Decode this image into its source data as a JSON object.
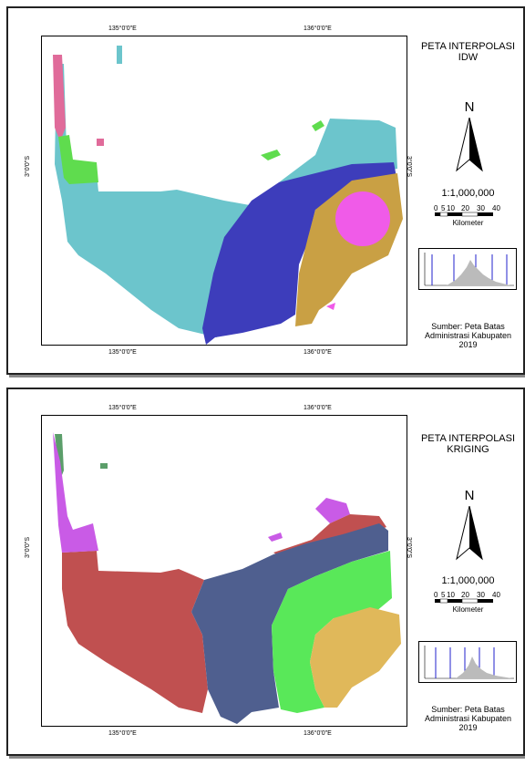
{
  "maps": [
    {
      "title_line1": "PETA INTERPOLASI",
      "title_line2": "IDW",
      "coord_top_left": "135°0'0\"E",
      "coord_top_right": "136°0'0\"E",
      "coord_bottom_left": "135°0'0\"E",
      "coord_bottom_right": "136°0'0\"E",
      "coord_left": "3°0'0\"S",
      "coord_right": "3°0'0\"S",
      "north_label": "N",
      "scale_text": "1:1,000,000",
      "scale_ticks": [
        "0",
        "5",
        "10",
        "20",
        "30",
        "40"
      ],
      "scale_unit": "Kilometer",
      "source_line1": "Sumber: Peta Batas",
      "source_line2": "Administrasi Kabupaten",
      "source_line3": "2019",
      "colors": [
        "#e06b9a",
        "#5fdc4e",
        "#6cc5cc",
        "#3d3dbb",
        "#c9a044",
        "#f05be8"
      ]
    },
    {
      "title_line1": "PETA INTERPOLASI",
      "title_line2": "KRIGING",
      "coord_top_left": "135°0'0\"E",
      "coord_top_right": "136°0'0\"E",
      "coord_bottom_left": "135°0'0\"E",
      "coord_bottom_right": "136°0'0\"E",
      "coord_left": "3°0'0\"S",
      "coord_right": "3°0'0\"S",
      "north_label": "N",
      "scale_text": "1:1,000,000",
      "scale_ticks": [
        "0",
        "5",
        "10",
        "20",
        "30",
        "40"
      ],
      "scale_unit": "Kilometer",
      "source_line1": "Sumber: Peta Batas",
      "source_line2": "Administrasi Kabupaten",
      "source_line3": "2019",
      "colors": [
        "#5b9e6a",
        "#c95be6",
        "#c05050",
        "#4f5f8f",
        "#59e859",
        "#e0b85a"
      ]
    }
  ]
}
